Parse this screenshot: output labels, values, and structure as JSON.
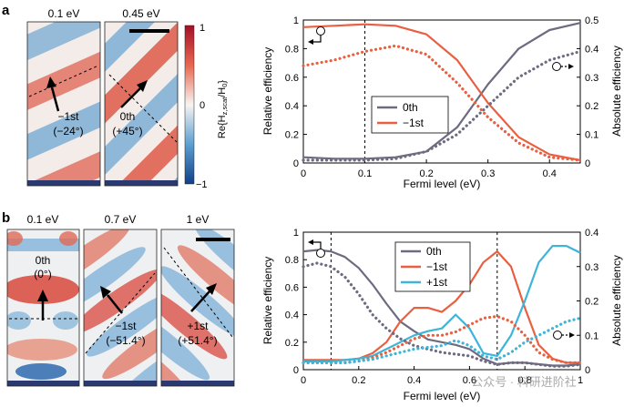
{
  "panel_a": {
    "label": "a",
    "maps": [
      {
        "energy": "0.1 eV",
        "mode": "−1st",
        "angle": "(−24°)"
      },
      {
        "energy": "0.45 eV",
        "mode": "0th",
        "angle": "(+45°)"
      }
    ],
    "colorbar": {
      "label_main": "Re{H",
      "label_sub1": "z,scat",
      "label_mid": "/H",
      "label_sub2": "0",
      "label_end": "}",
      "ticks": [
        "1",
        "0",
        "−1"
      ]
    }
  },
  "panel_b": {
    "label": "b",
    "maps": [
      {
        "energy": "0.1 eV",
        "mode": "0th",
        "angle": "(0°)"
      },
      {
        "energy": "0.7 eV",
        "mode": "−1st",
        "angle": "(−51.4°)"
      },
      {
        "energy": "1 eV",
        "mode": "+1st",
        "angle": "(+51.4°)"
      }
    ]
  },
  "watermark": "公众号 · 科研进阶社",
  "colors": {
    "zeroth": "#6e6a80",
    "minus1": "#e86040",
    "plus1": "#3db5d8",
    "red": "#c0182a",
    "blue": "#1d5fa8"
  },
  "chart_data": [
    {
      "type": "line",
      "title": "",
      "xlabel": "Fermi level (eV)",
      "ylabel": "Relative efficiency",
      "y2label": "Absolute efficiency",
      "xlim": [
        0,
        0.45
      ],
      "ylim": [
        0,
        1
      ],
      "y2lim": [
        0,
        0.5
      ],
      "xticks": [
        "0",
        "0.1",
        "0.2",
        "0.3",
        "0.4"
      ],
      "xtick_values": [
        0,
        0.1,
        0.2,
        0.3,
        0.4
      ],
      "yticks": [
        "0",
        "0.2",
        "0.4",
        "0.6",
        "0.8",
        "1"
      ],
      "y2ticks": [
        "0",
        "0.1",
        "0.2",
        "0.3",
        "0.4",
        "0.5"
      ],
      "vline": 0.1,
      "legend": [
        "0th",
        "−1st"
      ],
      "x": [
        0,
        0.05,
        0.1,
        0.15,
        0.2,
        0.25,
        0.3,
        0.35,
        0.4,
        0.45
      ],
      "series": [
        {
          "name": "0th",
          "axis": "relative",
          "style": "solid",
          "values": [
            0.04,
            0.03,
            0.03,
            0.04,
            0.08,
            0.25,
            0.55,
            0.8,
            0.93,
            0.98
          ]
        },
        {
          "name": "−1st",
          "axis": "relative",
          "style": "solid",
          "values": [
            0.95,
            0.96,
            0.97,
            0.96,
            0.9,
            0.72,
            0.42,
            0.18,
            0.06,
            0.02
          ]
        },
        {
          "name": "0th",
          "axis": "absolute",
          "style": "dotted",
          "values": [
            0.01,
            0.01,
            0.01,
            0.015,
            0.04,
            0.1,
            0.2,
            0.3,
            0.36,
            0.39
          ]
        },
        {
          "name": "−1st",
          "axis": "absolute",
          "style": "dotted",
          "values": [
            0.34,
            0.36,
            0.39,
            0.41,
            0.38,
            0.28,
            0.16,
            0.07,
            0.02,
            0.01
          ]
        }
      ]
    },
    {
      "type": "line",
      "title": "",
      "xlabel": "Fermi level (eV)",
      "ylabel": "Relative efficiency",
      "y2label": "Absolute efficiency",
      "xlim": [
        0,
        1
      ],
      "ylim": [
        0,
        1
      ],
      "y2lim": [
        0,
        0.4
      ],
      "xticks": [
        "0",
        "0.2",
        "0.4",
        "0.6",
        "0.8",
        "1"
      ],
      "xtick_values": [
        0,
        0.2,
        0.4,
        0.6,
        0.8,
        1
      ],
      "yticks": [
        "0",
        "0.2",
        "0.4",
        "0.6",
        "0.8",
        "1"
      ],
      "y2ticks": [
        "0",
        "0.1",
        "0.2",
        "0.3",
        "0.4"
      ],
      "vlines": [
        0.1,
        0.7
      ],
      "legend": [
        "0th",
        "−1st",
        "+1st"
      ],
      "x": [
        0,
        0.05,
        0.1,
        0.15,
        0.2,
        0.25,
        0.3,
        0.35,
        0.4,
        0.45,
        0.5,
        0.55,
        0.6,
        0.65,
        0.7,
        0.75,
        0.8,
        0.85,
        0.9,
        0.95,
        1.0
      ],
      "series": [
        {
          "name": "0th",
          "axis": "relative",
          "style": "solid",
          "values": [
            0.86,
            0.87,
            0.86,
            0.82,
            0.74,
            0.62,
            0.48,
            0.35,
            0.28,
            0.22,
            0.2,
            0.18,
            0.15,
            0.08,
            0.04,
            0.05,
            0.05,
            0.04,
            0.03,
            0.03,
            0.04
          ]
        },
        {
          "name": "−1st",
          "axis": "relative",
          "style": "solid",
          "values": [
            0.07,
            0.07,
            0.07,
            0.07,
            0.08,
            0.12,
            0.2,
            0.35,
            0.45,
            0.45,
            0.42,
            0.5,
            0.62,
            0.78,
            0.86,
            0.75,
            0.45,
            0.18,
            0.08,
            0.05,
            0.05
          ]
        },
        {
          "name": "+1st",
          "axis": "relative",
          "style": "solid",
          "values": [
            0.06,
            0.06,
            0.06,
            0.07,
            0.08,
            0.1,
            0.15,
            0.2,
            0.25,
            0.28,
            0.3,
            0.4,
            0.3,
            0.12,
            0.1,
            0.25,
            0.5,
            0.78,
            0.9,
            0.9,
            0.85
          ]
        },
        {
          "name": "0th",
          "axis": "absolute",
          "style": "dotted",
          "values": [
            0.3,
            0.31,
            0.3,
            0.27,
            0.22,
            0.16,
            0.12,
            0.09,
            0.07,
            0.06,
            0.05,
            0.045,
            0.04,
            0.025,
            0.015,
            0.02,
            0.02,
            0.015,
            0.01,
            0.01,
            0.015
          ]
        },
        {
          "name": "−1st",
          "axis": "absolute",
          "style": "dotted",
          "values": [
            0.02,
            0.02,
            0.02,
            0.02,
            0.025,
            0.035,
            0.05,
            0.07,
            0.09,
            0.1,
            0.1,
            0.11,
            0.13,
            0.15,
            0.155,
            0.14,
            0.1,
            0.05,
            0.03,
            0.02,
            0.02
          ]
        },
        {
          "name": "+1st",
          "axis": "absolute",
          "style": "dotted",
          "values": [
            0.02,
            0.02,
            0.02,
            0.02,
            0.025,
            0.03,
            0.04,
            0.05,
            0.06,
            0.065,
            0.07,
            0.085,
            0.07,
            0.04,
            0.03,
            0.05,
            0.08,
            0.1,
            0.12,
            0.14,
            0.15
          ]
        }
      ]
    }
  ]
}
